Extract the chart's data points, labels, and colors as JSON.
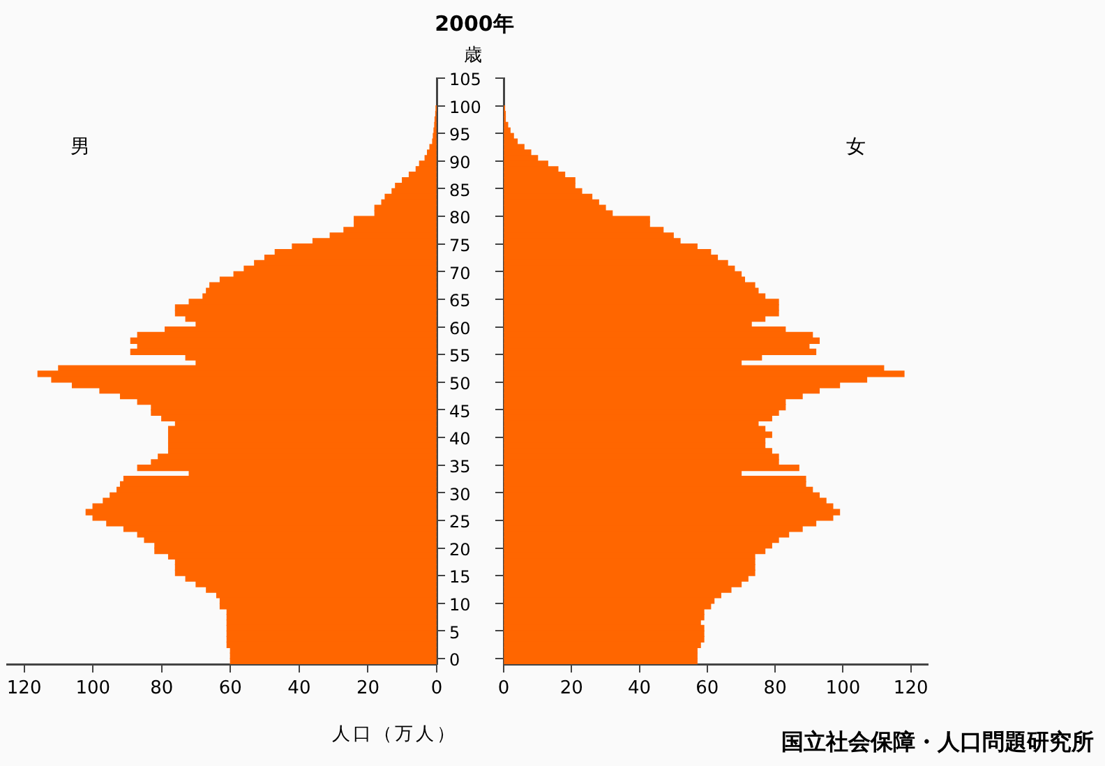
{
  "chart_data": [
    {
      "type": "bar",
      "orientation": "horizontal",
      "title": "2000年",
      "xlabel": "人口（万人）",
      "ylabel": "歳",
      "categories": [
        "105",
        null,
        null,
        null,
        null,
        "100",
        null,
        null,
        null,
        null,
        "95",
        null,
        null,
        null,
        null,
        "90",
        null,
        null,
        null,
        null,
        "85",
        null,
        null,
        null,
        null,
        "80",
        null,
        null,
        null,
        null,
        "75",
        null,
        null,
        null,
        null,
        "70",
        null,
        null,
        null,
        null,
        "65",
        null,
        null,
        null,
        null,
        "60",
        null,
        null,
        null,
        null,
        "55",
        null,
        null,
        null,
        null,
        "50",
        null,
        null,
        null,
        null,
        "45",
        null,
        null,
        null,
        null,
        "40",
        null,
        null,
        null,
        null,
        "35",
        null,
        null,
        null,
        null,
        "30",
        null,
        null,
        null,
        null,
        "25",
        null,
        null,
        null,
        null,
        "20",
        null,
        null,
        null,
        null,
        "15",
        null,
        null,
        null,
        null,
        "10",
        null,
        null,
        null,
        null,
        "5",
        null,
        null,
        null,
        null,
        "0"
      ],
      "series": [
        {
          "name": "男",
          "color": "#ff6600",
          "values": [
            null,
            null,
            null,
            null,
            null,
            0.1,
            0.3,
            0.5,
            0.6,
            0.8,
            1,
            1.2,
            2,
            2.7,
            3.4,
            5,
            6,
            8,
            10,
            12,
            13,
            15,
            16,
            18,
            18,
            24,
            24,
            27,
            31,
            36,
            42,
            47,
            50,
            53,
            56,
            59,
            63,
            66,
            67,
            68,
            72,
            76,
            76,
            73,
            70,
            79,
            87,
            89,
            87,
            89,
            73,
            70,
            110,
            116,
            112,
            106,
            98,
            92,
            87,
            83,
            83,
            80,
            76,
            78,
            78,
            78,
            78,
            78,
            81,
            83,
            87,
            72,
            91,
            92,
            93,
            95,
            97,
            100,
            102,
            100,
            96,
            91,
            87,
            85,
            82,
            82,
            78,
            76,
            76,
            76,
            73,
            70,
            67,
            64,
            63,
            63,
            61,
            61,
            61,
            61,
            61,
            61,
            61,
            60,
            60,
            60
          ]
        }
      ],
      "xlim": [
        125,
        0
      ],
      "xticks": [
        120,
        100,
        80,
        60,
        40,
        20,
        0
      ]
    },
    {
      "type": "bar",
      "orientation": "horizontal",
      "categories": [
        "105",
        null,
        null,
        null,
        null,
        "100",
        null,
        null,
        null,
        null,
        "95",
        null,
        null,
        null,
        null,
        "90",
        null,
        null,
        null,
        null,
        "85",
        null,
        null,
        null,
        null,
        "80",
        null,
        null,
        null,
        null,
        "75",
        null,
        null,
        null,
        null,
        "70",
        null,
        null,
        null,
        null,
        "65",
        null,
        null,
        null,
        null,
        "60",
        null,
        null,
        null,
        null,
        "55",
        null,
        null,
        null,
        null,
        "50",
        null,
        null,
        null,
        null,
        "45",
        null,
        null,
        null,
        null,
        "40",
        null,
        null,
        null,
        null,
        "35",
        null,
        null,
        null,
        null,
        "30",
        null,
        null,
        null,
        null,
        "25",
        null,
        null,
        null,
        null,
        "20",
        null,
        null,
        null,
        null,
        "15",
        null,
        null,
        null,
        null,
        "10",
        null,
        null,
        null,
        null,
        "5",
        null,
        null,
        null,
        null,
        "0"
      ],
      "series": [
        {
          "name": "女",
          "color": "#ff6600",
          "values": [
            null,
            null,
            null,
            null,
            null,
            0.3,
            0.5,
            0.5,
            1.2,
            1.9,
            2.9,
            4,
            6,
            8,
            10,
            13,
            16,
            18,
            21,
            21,
            23,
            26,
            28,
            30,
            32,
            43,
            43,
            47,
            50,
            52,
            57,
            61,
            63,
            66,
            68,
            70,
            71,
            74,
            75,
            77,
            81,
            81,
            81,
            77,
            73,
            83,
            91,
            93,
            90,
            92,
            76,
            70,
            112,
            118,
            107,
            99,
            93,
            88,
            83,
            83,
            81,
            79,
            75,
            77,
            79,
            77,
            77,
            79,
            81,
            81,
            87,
            70,
            89,
            89,
            91,
            93,
            95,
            97,
            99,
            97,
            92,
            88,
            84,
            81,
            79,
            77,
            74,
            74,
            74,
            74,
            72,
            70,
            67,
            64,
            62,
            61,
            59,
            59,
            58,
            59,
            59,
            59,
            58,
            57,
            57,
            57
          ]
        }
      ],
      "xlim": [
        0,
        125
      ],
      "xticks": [
        0,
        20,
        40,
        60,
        80,
        100,
        120
      ],
      "tick_labels": "x",
      "annotations": [
        "国立社会保障・人口問題研究所"
      ]
    }
  ]
}
